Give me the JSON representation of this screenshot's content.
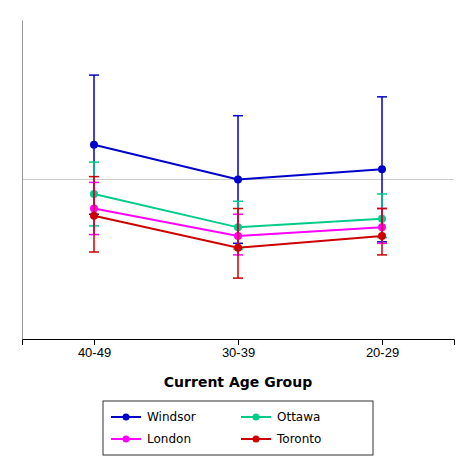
{
  "chart_data": {
    "type": "line",
    "xlabel": "Current Age Group",
    "categories": [
      "40-49",
      "30-39",
      "20-29"
    ],
    "series": [
      {
        "name": "Windsor",
        "color": "#0000cc",
        "marker": "circle",
        "line_style": "solid",
        "values": [
          0.72,
          0.6,
          0.635
        ],
        "error_lower": [
          0.24,
          0.22,
          0.25
        ],
        "error_upper": [
          0.24,
          0.22,
          0.25
        ]
      },
      {
        "name": "Ottawa",
        "color": "#00cc88",
        "marker": "circle",
        "line_style": "solid",
        "values": [
          0.55,
          0.435,
          0.465
        ],
        "error_lower": [
          0.11,
          0.075,
          0.065
        ],
        "error_upper": [
          0.11,
          0.09,
          0.085
        ]
      },
      {
        "name": "London",
        "color": "#ff00ff",
        "marker": "circle",
        "line_style": "solid",
        "values": [
          0.5,
          0.405,
          0.435
        ],
        "error_lower": [
          0.09,
          0.065,
          0.055
        ],
        "error_upper": [
          0.09,
          0.075,
          0.065
        ]
      },
      {
        "name": "Toronto",
        "color": "#cc0000",
        "marker": "circle",
        "line_style": "solid",
        "values": [
          0.475,
          0.365,
          0.405
        ],
        "error_lower": [
          0.125,
          0.105,
          0.065
        ],
        "error_upper": [
          0.135,
          0.135,
          0.095
        ]
      }
    ],
    "ylim": [
      0.05,
      1.15
    ],
    "yticks": [
      0.6
    ],
    "grid": true,
    "tick_labels": "x",
    "legend": "bottom"
  }
}
